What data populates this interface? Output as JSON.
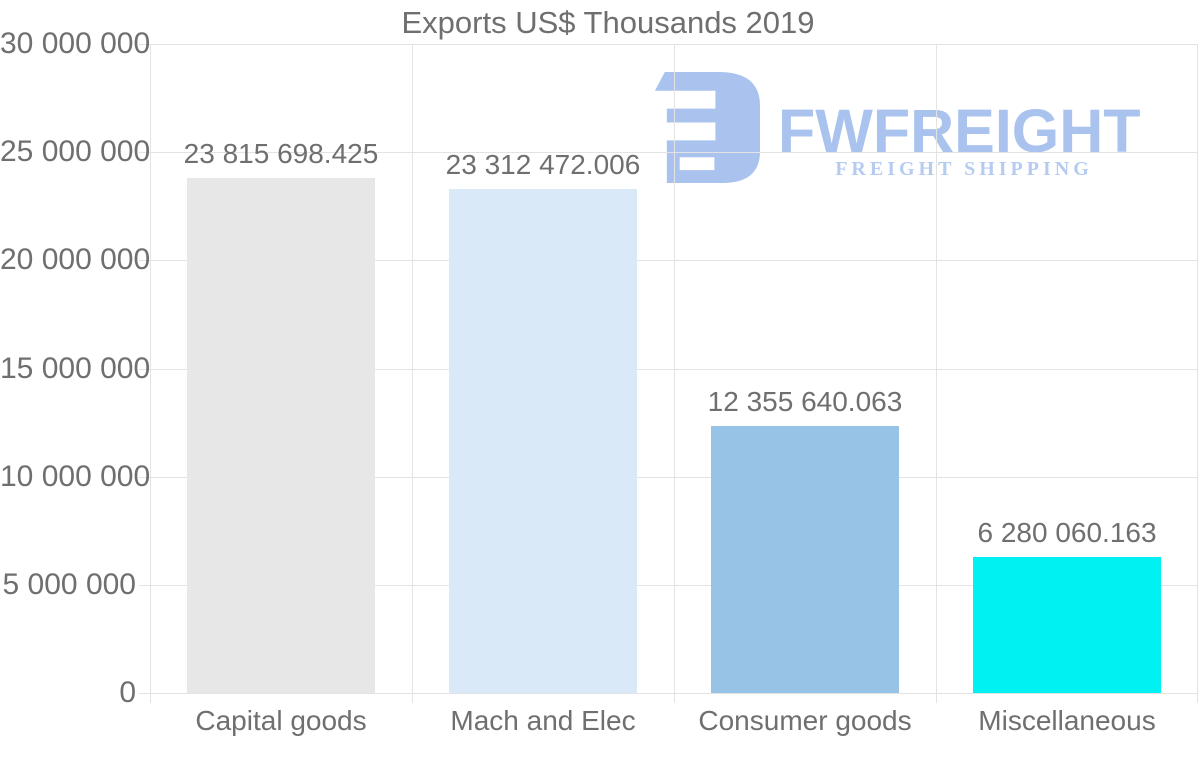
{
  "title": "Exports US$ Thousands 2019",
  "watermark": {
    "wordmark": "FWFREIGHT",
    "subtitle": "FREIGHT SHIPPING",
    "logo_icon": "fwfreight-logo-mark",
    "wordmark_color": "#a9c3ee",
    "subtitle_color": "#b6cbf2"
  },
  "colors": {
    "background": "#ffffff",
    "grid": "#e3e3e3",
    "axis_text": "#6f6f6f"
  },
  "chart_data": {
    "type": "bar",
    "title": "Exports US$ Thousands 2019",
    "categories": [
      "Capital goods",
      "Mach and Elec",
      "Consumer goods",
      "Miscellaneous"
    ],
    "values": [
      23815698.425,
      23312472.006,
      12355640.063,
      6280060.163
    ],
    "value_labels": [
      "23 815 698.425",
      "23 312 472.006",
      "12 355 640.063",
      "6 280 060.163"
    ],
    "bar_colors": [
      "#e7e7e7",
      "#d9e9f8",
      "#97c3e6",
      "#00f1f1"
    ],
    "xlabel": "",
    "ylabel": "",
    "ylim": [
      0,
      30000000
    ],
    "y_tick_labels": [
      "30 000 000",
      "25 000 000",
      "20 000 000",
      "15 000 000",
      "10 000 000",
      "5 000 000",
      "0"
    ],
    "grid": true,
    "legend": "none"
  }
}
